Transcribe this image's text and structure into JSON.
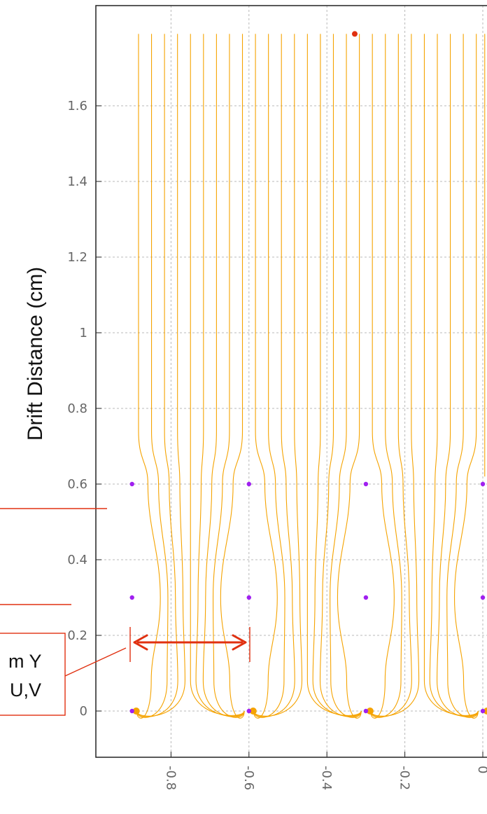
{
  "chart_data": {
    "type": "line",
    "title": "",
    "xlabel": "",
    "ylabel": "Drift Distance (cm)",
    "xlim": [
      -1.0,
      0.0
    ],
    "ylim": [
      -0.13,
      1.79
    ],
    "x_ticks": [
      -0.8,
      -0.6,
      -0.4,
      -0.2,
      0
    ],
    "x_tick_labels": [
      "-0.8",
      "-0.6",
      "-0.4",
      "-0.2",
      "0"
    ],
    "y_ticks": [
      0,
      0.2,
      0.4,
      0.6,
      0.8,
      1.0,
      1.2,
      1.4,
      1.6
    ],
    "y_tick_labels": [
      "0",
      "0.2",
      "0.4",
      "0.6",
      "0.8",
      "1",
      "1.2",
      "1.4",
      "1.6"
    ],
    "grid": true,
    "series_color": "#f5a300",
    "wire_color": "#a020f0",
    "cathode_color": "#e03010",
    "annotation_color": "#e03010",
    "wire_planes": [
      {
        "y": 0.6,
        "x": [
          -0.9,
          -0.6,
          -0.3,
          0.0
        ]
      },
      {
        "y": 0.3,
        "x": [
          -0.9,
          -0.6,
          -0.3,
          0.0
        ]
      },
      {
        "y": 0.0,
        "x": [
          -0.9,
          -0.6,
          -0.3,
          0.0
        ]
      }
    ],
    "cathode_point": {
      "x": -0.325,
      "y": 1.79
    },
    "field_lines_per_cell": 9,
    "cell_pitch": 0.3,
    "cell_centers": [
      -0.75,
      -0.45,
      -0.15
    ],
    "annotations": {
      "pitch_box_line1": "m Y",
      "pitch_box_line2": "U,V"
    }
  }
}
